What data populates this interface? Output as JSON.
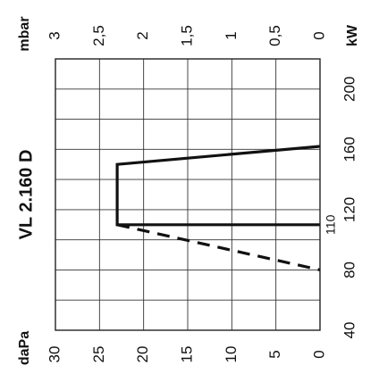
{
  "chart_data": {
    "type": "line",
    "title": "VL 2.160 D",
    "orientation": "rotated-90",
    "x_axis": {
      "unit_label": "kW",
      "range": [
        40,
        220
      ],
      "ticks": [
        40,
        80,
        110,
        120,
        160,
        200
      ],
      "tick_labels": [
        "40",
        "80",
        "110",
        "120",
        "160",
        "200"
      ]
    },
    "y_axis_left": {
      "unit_label": "daPa",
      "range": [
        0,
        30
      ],
      "ticks": [
        0,
        5,
        10,
        15,
        20,
        25,
        30
      ],
      "tick_labels": [
        "0",
        "5",
        "10",
        "15",
        "20",
        "25",
        "30"
      ]
    },
    "y_axis_right": {
      "unit_label": "mbar",
      "range": [
        0,
        3
      ],
      "ticks": [
        0,
        0.5,
        1,
        1.5,
        2,
        2.5,
        3
      ],
      "tick_labels": [
        "0",
        "0,5",
        "1",
        "1,5",
        "2",
        "2,5",
        "3"
      ]
    },
    "grid": true,
    "series": [
      {
        "style": "solid",
        "points": [
          [
            110,
            0
          ],
          [
            110,
            23
          ],
          [
            150,
            23
          ],
          [
            162,
            0
          ]
        ]
      },
      {
        "style": "dashed",
        "points": [
          [
            110,
            23
          ],
          [
            80,
            0
          ]
        ]
      }
    ]
  }
}
